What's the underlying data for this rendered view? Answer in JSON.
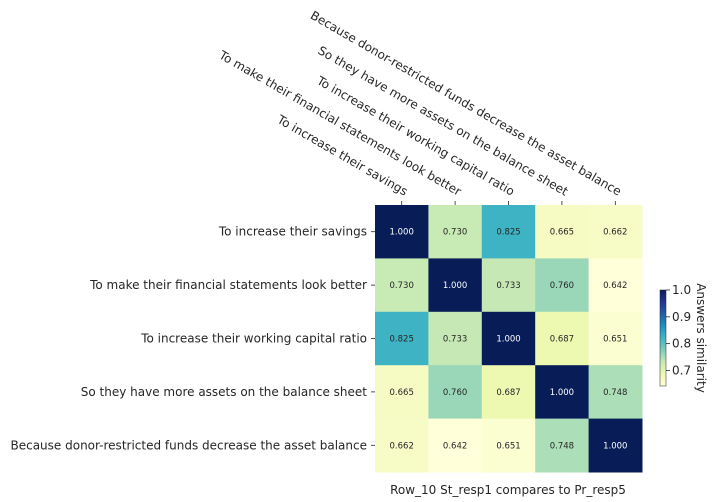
{
  "chart_data": {
    "type": "heatmap",
    "title": "",
    "xlabel": "Row_10 St_resp1 compares to Pr_resp5",
    "ylabel": "",
    "column_labels": [
      "To increase their savings",
      "To make their financial statements look better",
      "To increase their working capital ratio",
      "So they have more assets on the balance sheet",
      "Because donor-restricted funds decrease the asset balance"
    ],
    "row_labels": [
      "To increase their savings",
      "To make their financial statements look better",
      "To increase their working capital ratio",
      "So they have more assets on the balance sheet",
      "Because donor-restricted funds decrease the asset balance"
    ],
    "values": [
      [
        1.0,
        0.73,
        0.825,
        0.665,
        0.662
      ],
      [
        0.73,
        1.0,
        0.733,
        0.76,
        0.642
      ],
      [
        0.825,
        0.733,
        1.0,
        0.687,
        0.651
      ],
      [
        0.665,
        0.76,
        0.687,
        1.0,
        0.748
      ],
      [
        0.662,
        0.642,
        0.651,
        0.748,
        1.0
      ]
    ],
    "value_format": "0.000",
    "colorbar": {
      "label": "Answers similarity",
      "colormap": "YlGnBu",
      "vmin": 0.642,
      "vmax": 1.0,
      "ticks": [
        "0.7",
        "0.8",
        "0.9",
        "1.0"
      ],
      "tick_values": [
        0.7,
        0.8,
        0.9,
        1.0
      ]
    },
    "column_labels_position": "top",
    "grid": false
  }
}
